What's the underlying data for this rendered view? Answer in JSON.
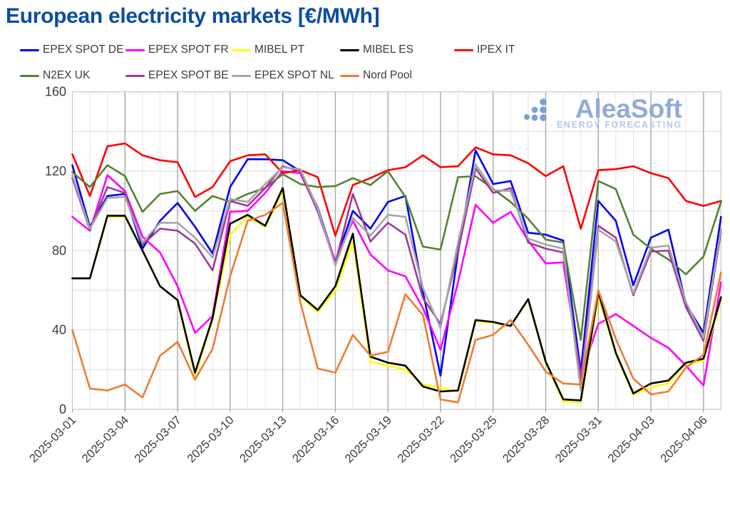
{
  "title": "European electricity markets [€/MWh]",
  "watermark": {
    "brand": "AleaSoft",
    "tagline": "ENERGY FORECASTING"
  },
  "chart_data": {
    "type": "line",
    "title": "European electricity markets [€/MWh]",
    "xlabel": "",
    "ylabel": "",
    "ylim": [
      0,
      160
    ],
    "y_ticks": [
      0,
      40,
      80,
      120,
      160
    ],
    "y_minor_grid_step": 20,
    "grid": "on",
    "legend_position": "top",
    "x": [
      "2025-03-01",
      "2025-03-02",
      "2025-03-03",
      "2025-03-04",
      "2025-03-05",
      "2025-03-06",
      "2025-03-07",
      "2025-03-08",
      "2025-03-09",
      "2025-03-10",
      "2025-03-11",
      "2025-03-12",
      "2025-03-13",
      "2025-03-14",
      "2025-03-15",
      "2025-03-16",
      "2025-03-17",
      "2025-03-18",
      "2025-03-19",
      "2025-03-20",
      "2025-03-21",
      "2025-03-22",
      "2025-03-23",
      "2025-03-24",
      "2025-03-25",
      "2025-03-26",
      "2025-03-27",
      "2025-03-28",
      "2025-03-29",
      "2025-03-30",
      "2025-03-31",
      "2025-04-01",
      "2025-04-02",
      "2025-04-03",
      "2025-04-04",
      "2025-04-05",
      "2025-04-06",
      "2025-04-07"
    ],
    "x_tick_labels": [
      "2025-03-01",
      "2025-03-04",
      "2025-03-07",
      "2025-03-10",
      "2025-03-13",
      "2025-03-16",
      "2025-03-19",
      "2025-03-22",
      "2025-03-25",
      "2025-03-28",
      "2025-03-31",
      "2025-04-03",
      "2025-04-06"
    ],
    "x_major_every": 3,
    "series": [
      {
        "name": "EPEX SPOT DE",
        "color": "#0000f0",
        "values": [
          123,
          92,
          107.5,
          108.5,
          81,
          95,
          104,
          92,
          78.5,
          112,
          126,
          126,
          125.5,
          120,
          101.5,
          74,
          100,
          91,
          104.5,
          107.5,
          59,
          17,
          79,
          130.5,
          113.5,
          115,
          89,
          88,
          85,
          19,
          105,
          95,
          62.5,
          86.5,
          90.5,
          53,
          38.5,
          97
        ]
      },
      {
        "name": "EPEX SPOT FR",
        "color": "#ff00ff",
        "values": [
          97,
          90,
          118,
          110,
          87,
          79,
          62,
          38.5,
          47,
          99.5,
          100,
          109,
          120,
          119,
          100,
          74.5,
          95,
          78,
          70,
          67,
          51,
          30,
          64,
          103,
          94,
          99.5,
          85,
          73.5,
          74,
          17,
          43,
          48,
          42,
          36,
          31,
          22,
          12,
          64
        ]
      },
      {
        "name": "MIBEL PT",
        "color": "#ffff00",
        "values": [
          66,
          66,
          97,
          97,
          80,
          62,
          55,
          17,
          45,
          88,
          97,
          92,
          110,
          57,
          49,
          60,
          84.5,
          24,
          22,
          20,
          12.5,
          11,
          9,
          44.5,
          43.5,
          42,
          55,
          23.5,
          4,
          3.5,
          57,
          28,
          7.5,
          11,
          13,
          23,
          24.5,
          55
        ]
      },
      {
        "name": "MIBEL ES",
        "color": "#000000",
        "values": [
          66,
          66,
          97.5,
          97.5,
          80,
          62,
          55,
          18.5,
          46,
          93.5,
          98,
          92.5,
          111.5,
          57.5,
          50,
          62,
          88.5,
          26.5,
          23.5,
          22,
          11.5,
          9,
          9.5,
          45,
          44,
          42,
          55.5,
          24,
          5,
          4.5,
          59,
          28.5,
          8,
          13,
          14.5,
          23.5,
          25.5,
          56.5
        ]
      },
      {
        "name": "IPEX IT",
        "color": "#fe0000",
        "values": [
          128.5,
          107.5,
          132.5,
          134,
          128,
          125.5,
          124.5,
          107,
          112,
          125,
          128,
          128.5,
          119,
          120.5,
          117,
          87.5,
          113,
          116.5,
          120.5,
          122,
          128,
          122,
          122.5,
          132,
          128.5,
          128,
          124,
          117.5,
          122.5,
          91,
          120.5,
          121,
          122.5,
          119,
          116.5,
          105,
          102.5,
          105
        ]
      },
      {
        "name": "N2EX UK",
        "color": "#548235",
        "values": [
          119.5,
          112,
          123,
          117.5,
          99.5,
          108.5,
          110,
          100,
          107.5,
          104.5,
          108.5,
          111.5,
          118.5,
          113.5,
          112,
          112.5,
          116.5,
          113,
          120,
          107,
          82,
          80.5,
          117,
          117.5,
          111,
          104.5,
          96,
          85.5,
          84,
          35,
          115,
          111,
          88,
          81,
          75.5,
          68,
          77,
          104.5
        ]
      },
      {
        "name": "EPEX SPOT BE",
        "color": "#9e3a9e",
        "values": [
          116.5,
          90.5,
          112,
          109,
          83,
          91,
          90,
          83.5,
          70,
          105,
          102.5,
          111.5,
          122.5,
          120,
          99.5,
          73.5,
          108.5,
          84.5,
          94,
          88,
          56,
          43,
          79.5,
          121.5,
          109,
          111.5,
          84,
          81,
          79,
          14.5,
          92.5,
          86.5,
          57.5,
          79.5,
          80,
          51.5,
          34.5,
          89.5
        ]
      },
      {
        "name": "EPEX SPOT NL",
        "color": "#a6a6a6",
        "values": [
          118,
          91,
          106.5,
          107,
          84,
          94,
          94,
          86.5,
          76.5,
          106,
          104.5,
          113.5,
          122,
          121,
          101,
          72.5,
          96.5,
          87.5,
          98,
          97,
          61,
          41,
          84,
          123.5,
          110.5,
          110,
          86,
          83,
          81,
          9.5,
          90.5,
          84.5,
          58.5,
          81.5,
          82.5,
          54,
          36,
          91
        ]
      },
      {
        "name": "Nord Pool",
        "color": "#ed7d31",
        "values": [
          40,
          10.5,
          9.5,
          12.5,
          6,
          27,
          34,
          15,
          30.5,
          67,
          95,
          98,
          104,
          54,
          20.5,
          18.5,
          37.5,
          27,
          29,
          58,
          47.5,
          5,
          3.5,
          35,
          37.5,
          45,
          32.5,
          19,
          13,
          12.5,
          60,
          35.5,
          15.5,
          7.5,
          9,
          21,
          27.5,
          69
        ]
      }
    ]
  },
  "colors": {
    "title": "#0c4da2",
    "axis_text": "#3c3c3c",
    "grid_minor": "#e4e4e4",
    "grid_major": "#a9a9a9",
    "grid_h": "#dedede",
    "frame": "#c9c9c9",
    "watermark_brand": "#92abd6",
    "watermark_tagline": "#b5c7e7",
    "watermark_dots": "#7fa0d2"
  }
}
